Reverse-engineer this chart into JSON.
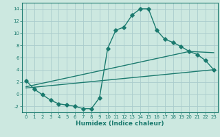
{
  "title": "",
  "xlabel": "Humidex (Indice chaleur)",
  "background_color": "#cce8e0",
  "grid_color": "#aacccc",
  "line_color": "#1a7a6e",
  "xlim": [
    -0.5,
    23.5
  ],
  "ylim": [
    -3.0,
    15.0
  ],
  "yticks": [
    -2,
    0,
    2,
    4,
    6,
    8,
    10,
    12,
    14
  ],
  "xticks": [
    0,
    1,
    2,
    3,
    4,
    5,
    6,
    7,
    8,
    9,
    10,
    11,
    12,
    13,
    14,
    15,
    16,
    17,
    18,
    19,
    20,
    21,
    22,
    23
  ],
  "curve1_x": [
    0,
    1,
    2,
    3,
    4,
    5,
    6,
    7,
    8,
    9,
    10,
    11,
    12,
    13,
    14,
    15,
    16,
    17,
    18,
    19,
    20,
    21,
    22,
    23
  ],
  "curve1_y": [
    2.2,
    0.8,
    -0.1,
    -1.0,
    -1.6,
    -1.8,
    -2.0,
    -2.4,
    -2.4,
    -0.6,
    7.5,
    10.5,
    11.0,
    13.0,
    14.0,
    14.0,
    10.5,
    9.0,
    8.5,
    7.8,
    7.0,
    6.5,
    5.5,
    4.0
  ],
  "curve2_x": [
    0,
    20,
    23
  ],
  "curve2_y": [
    1.2,
    7.0,
    6.8
  ],
  "curve3_x": [
    0,
    23
  ],
  "curve3_y": [
    1.0,
    4.0
  ],
  "marker_size": 2.8,
  "linewidth": 1.0,
  "tick_fontsize": 5.0,
  "xlabel_fontsize": 6.5
}
